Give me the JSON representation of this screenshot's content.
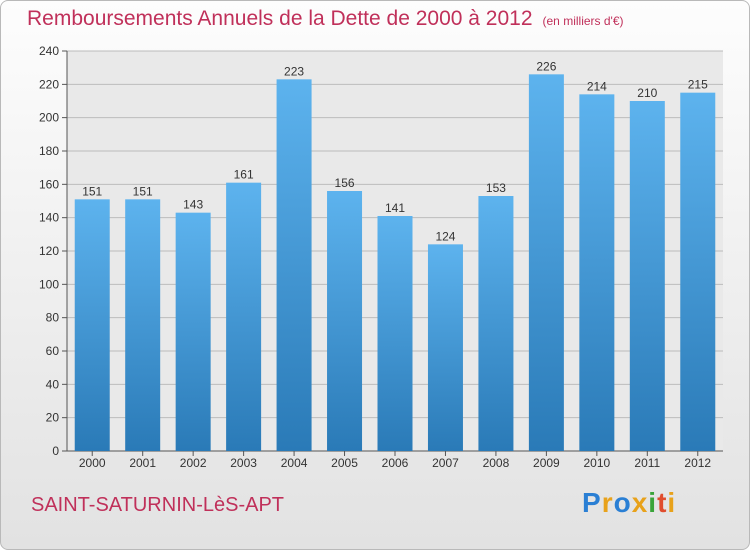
{
  "title": "Remboursements Annuels de la Dette de 2000 à 2012",
  "unit_note": "(en milliers d'€)",
  "commune": "SAINT-SATURNIN-LèS-APT",
  "logo": {
    "letters": [
      "P",
      "r",
      "o",
      "x",
      "i",
      "t",
      "i"
    ],
    "colors": [
      "#2a7fd4",
      "#e8a21b",
      "#2a7fd4",
      "#e8a21b",
      "#3aa43a",
      "#e04d2e",
      "#e8a21b"
    ]
  },
  "colors": {
    "bar_light": "#5db3ee",
    "bar_dark": "#2a7ab7",
    "title": "#c0305a"
  },
  "chart_data": {
    "type": "bar",
    "categories": [
      "2000",
      "2001",
      "2002",
      "2003",
      "2004",
      "2005",
      "2006",
      "2007",
      "2008",
      "2009",
      "2010",
      "2011",
      "2012"
    ],
    "values": [
      151,
      151,
      143,
      161,
      223,
      156,
      141,
      124,
      153,
      226,
      214,
      210,
      215
    ],
    "ylim": [
      0,
      240
    ],
    "yticks": [
      0,
      20,
      40,
      60,
      80,
      100,
      120,
      140,
      160,
      180,
      200,
      220,
      240
    ],
    "grid": true
  }
}
